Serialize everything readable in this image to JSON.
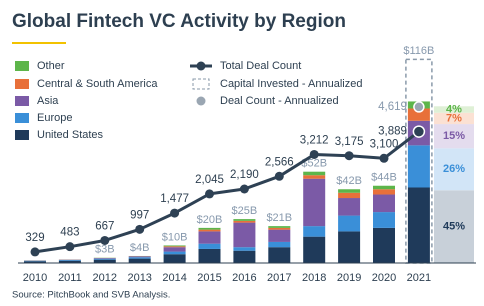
{
  "chart_data": {
    "type": "bar",
    "title": "Global Fintech VC Activity by Region",
    "source": "Source: PitchBook and SVB Analysis.",
    "categories": [
      "2010",
      "2011",
      "2012",
      "2013",
      "2014",
      "2015",
      "2016",
      "2017",
      "2018",
      "2019",
      "2020",
      "2021"
    ],
    "series": [
      {
        "name": "United States",
        "color": "#1f3a5a",
        "light_color": "#c8d0d9",
        "values": [
          1.0,
          1.3,
          1.9,
          2.5,
          5,
          8,
          7,
          9,
          15,
          18,
          20,
          43
        ],
        "share_2021": 45,
        "share_label": "45%"
      },
      {
        "name": "Europe",
        "color": "#3a8fd8",
        "light_color": "#d2e5f7",
        "values": [
          0.3,
          0.4,
          0.6,
          0.8,
          1.5,
          3,
          2,
          3,
          6,
          9,
          9,
          24
        ],
        "share_2021": 26,
        "share_label": "26%"
      },
      {
        "name": "Asia",
        "color": "#7b5aa6",
        "light_color": "#e4dcee",
        "values": [
          0.1,
          0.2,
          0.3,
          0.5,
          2.5,
          7,
          14,
          7,
          27,
          10,
          10,
          14
        ],
        "share_2021": 15,
        "share_label": "15%"
      },
      {
        "name": "Central & South America",
        "color": "#e8703a",
        "light_color": "#fbe1d3",
        "values": [
          0.05,
          0.05,
          0.1,
          0.1,
          0.5,
          1,
          1,
          1,
          2,
          3,
          3,
          7
        ],
        "share_2021": 7,
        "share_label": "7%"
      },
      {
        "name": "Other",
        "color": "#5db54a",
        "light_color": "#dff0d6",
        "values": [
          0.05,
          0.05,
          0.1,
          0.1,
          0.5,
          1,
          1,
          1,
          2,
          2,
          2,
          4
        ],
        "share_2021": 4,
        "share_label": "4%"
      }
    ],
    "totals": {
      "values": [
        null,
        null,
        3,
        4,
        10,
        20,
        25,
        21,
        52,
        42,
        44,
        null
      ],
      "value_labels": [
        null,
        null,
        "$3B",
        "$4B",
        "$10B",
        "$20B",
        "$25B",
        "$21B",
        "$52B",
        "$42B",
        "$44B",
        null
      ]
    },
    "capital_annualized": {
      "name": "Capital Invested - Annualized",
      "color": "#8a9aaa",
      "values": [
        null,
        null,
        null,
        null,
        null,
        null,
        null,
        null,
        null,
        null,
        null,
        116
      ],
      "value_labels": [
        null,
        null,
        null,
        null,
        null,
        null,
        null,
        null,
        null,
        null,
        null,
        "$116B"
      ]
    },
    "deal_count": {
      "name": "Total Deal Count",
      "color": "#2e4154",
      "axis": "y2",
      "values": [
        329,
        483,
        667,
        997,
        1477,
        2045,
        2190,
        2566,
        3212,
        3175,
        3100,
        3889
      ],
      "value_labels": [
        "329",
        "483",
        "667",
        "997",
        "1,477",
        "2,045",
        "2,190",
        "2,566",
        "3,212",
        "3,175",
        "3,100",
        "3,889"
      ]
    },
    "deal_count_annualized": {
      "name": "Deal Count - Annualized",
      "color": "#9aa6b2",
      "axis": "y2",
      "values": [
        null,
        null,
        null,
        null,
        null,
        null,
        null,
        null,
        null,
        null,
        null,
        4619
      ],
      "value_labels": [
        null,
        null,
        null,
        null,
        null,
        null,
        null,
        null,
        null,
        null,
        null,
        "4,619"
      ]
    },
    "ylim": [
      0,
      127
    ],
    "y2lim": [
      0,
      6600
    ],
    "legend": "upper left"
  }
}
